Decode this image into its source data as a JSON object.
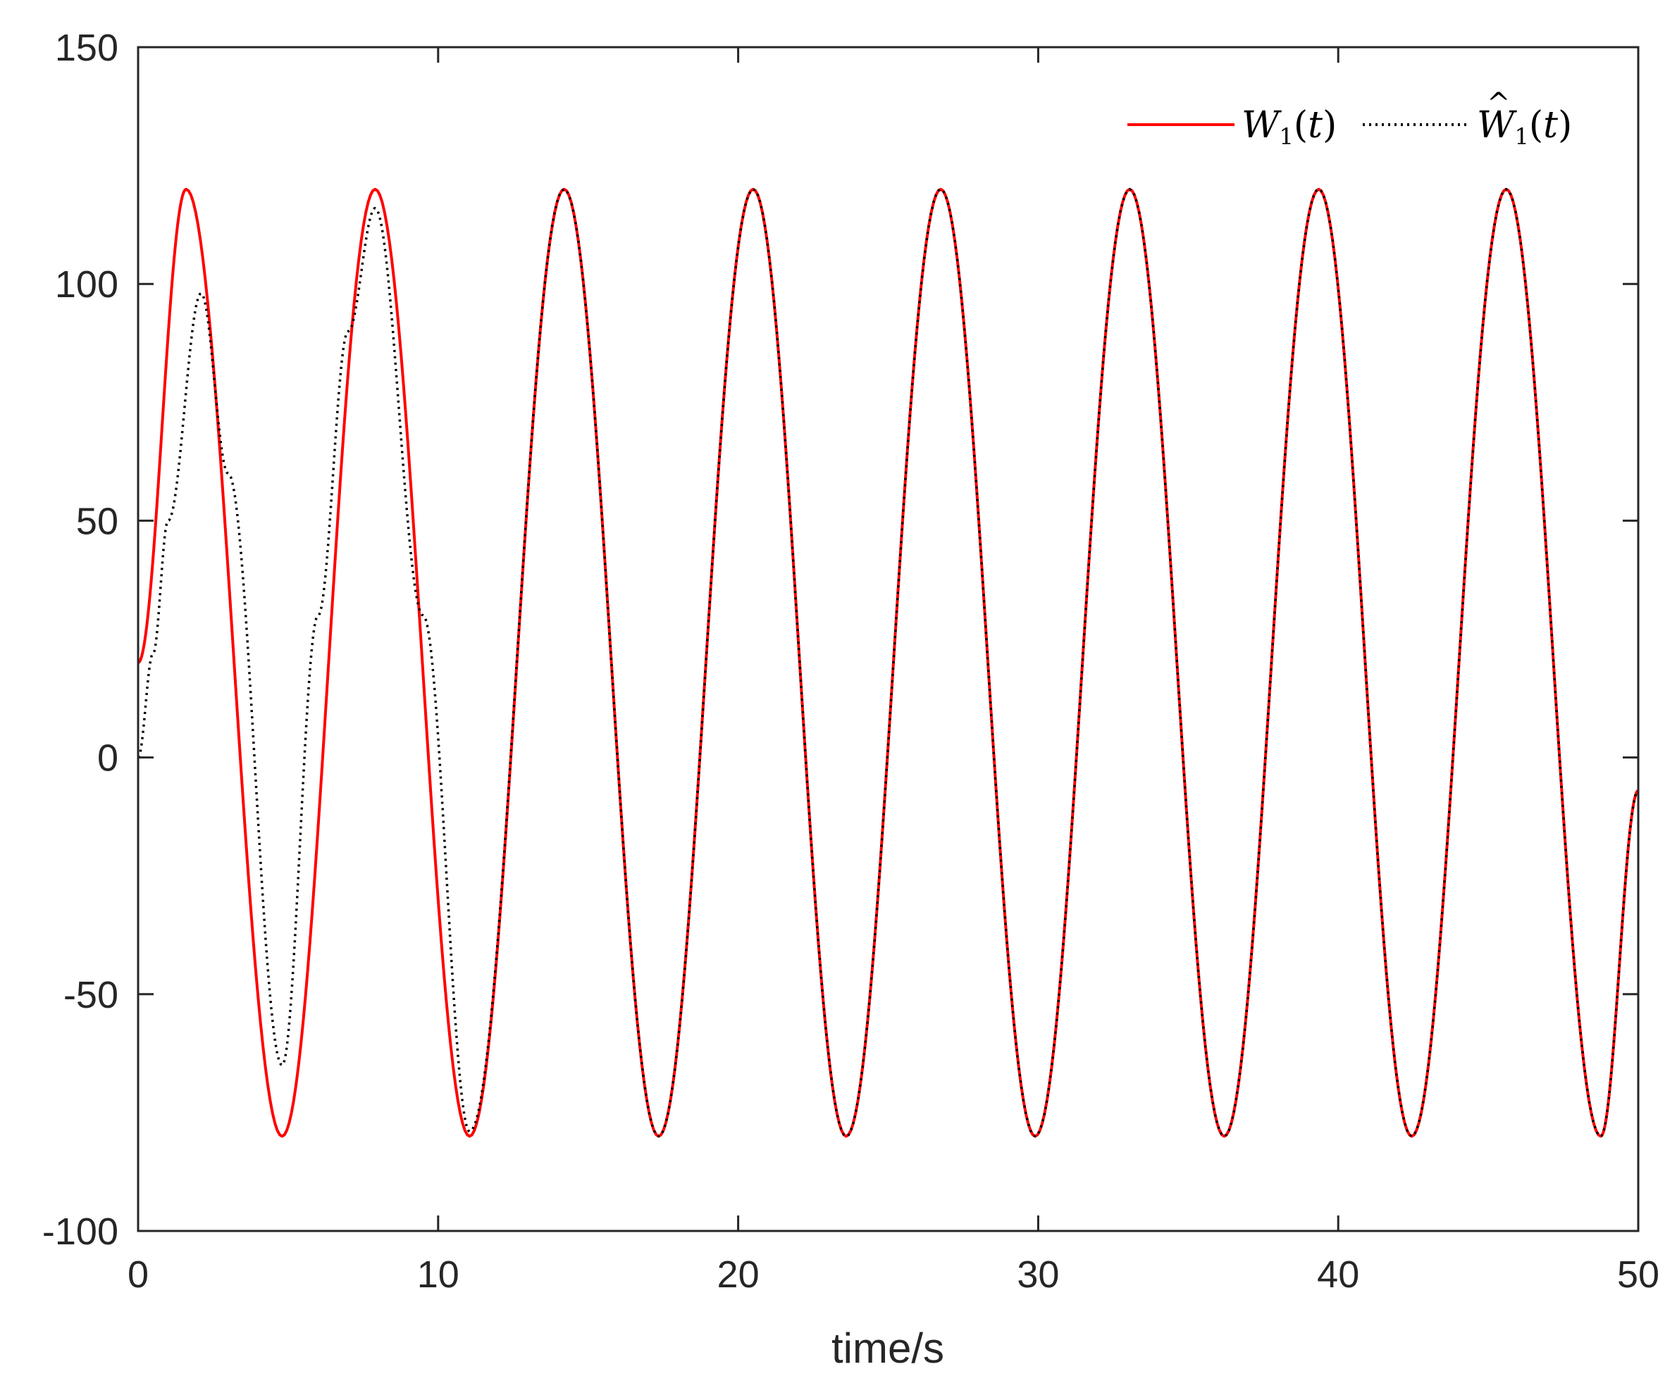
{
  "chart_data": {
    "type": "line",
    "title": "",
    "xlabel": "time/s",
    "ylabel": "",
    "xlim": [
      0,
      50
    ],
    "ylim": [
      -100,
      150
    ],
    "xticks": [
      "0",
      "10",
      "20",
      "30",
      "40",
      "50"
    ],
    "yticks": [
      "-100",
      "-50",
      "0",
      "50",
      "100",
      "150"
    ],
    "grid": false,
    "legend_position": "top-right",
    "series": [
      {
        "name": "W1(t)",
        "legend_main": "W",
        "legend_sub": "1",
        "legend_args": "(t)",
        "color": "#ff0000",
        "style": "solid",
        "x": [
          0,
          1.6,
          4.8,
          7.9,
          11.05,
          14.2,
          17.35,
          20.5,
          23.6,
          26.75,
          29.9,
          33.05,
          36.2,
          39.35,
          42.45,
          45.6,
          48.75,
          50
        ],
        "y": [
          20,
          120,
          -80,
          120,
          -80,
          120,
          -80,
          120,
          -80,
          120,
          -80,
          120,
          -80,
          120,
          -80,
          120,
          -80,
          -7
        ]
      },
      {
        "name": "Ŵ1(t)",
        "legend_main": "W",
        "legend_hat": "^",
        "legend_sub": "1",
        "legend_args": "(t)",
        "color": "#000000",
        "style": "dotted",
        "x": [
          0,
          0.5,
          1.0,
          2.1,
          3.0,
          4.8,
          6.0,
          7.0,
          7.9,
          9.5,
          11.05,
          14.2,
          17.35,
          20.5,
          23.6,
          26.75,
          29.9,
          33.05,
          36.2,
          39.35,
          42.45,
          45.6,
          48.75,
          50
        ],
        "y": [
          0,
          22,
          50,
          98,
          60,
          -65,
          30,
          90,
          116,
          30,
          -79,
          120,
          -80,
          120,
          -80,
          120,
          -80,
          120,
          -80,
          120,
          -80,
          120,
          -80,
          -7
        ]
      }
    ]
  }
}
